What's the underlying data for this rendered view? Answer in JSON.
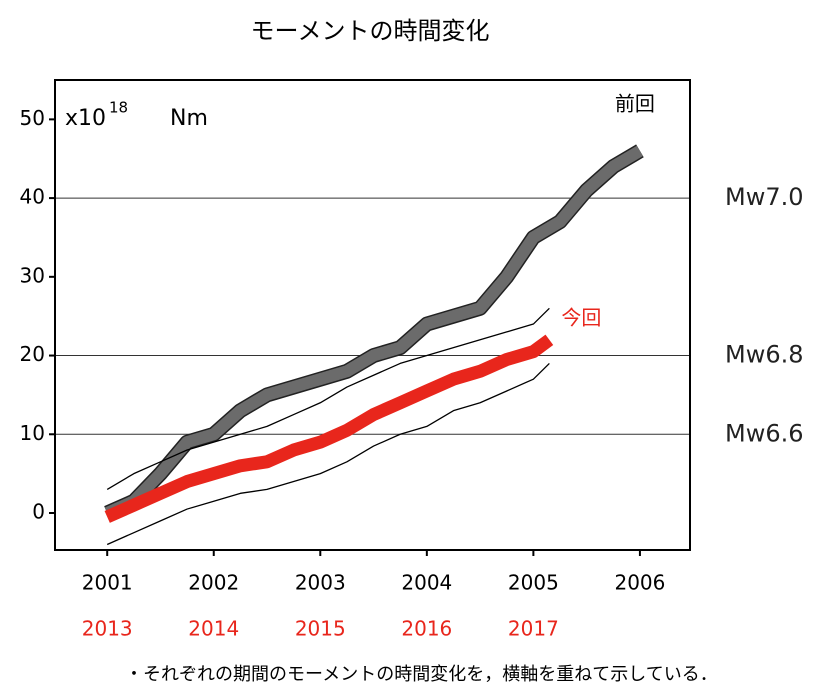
{
  "chart_data": {
    "type": "line",
    "title": "モーメントの時間変化",
    "y_unit": {
      "base": "x10",
      "exponent": "18",
      "unit": "Nm"
    },
    "xlim": [
      2000.51,
      2006.47
    ],
    "xticks": [
      2001,
      2002,
      2003,
      2004,
      2005,
      2006
    ],
    "xticks2": [
      {
        "value": 2001,
        "label": "2013"
      },
      {
        "value": 2002,
        "label": "2014"
      },
      {
        "value": 2003,
        "label": "2015"
      },
      {
        "value": 2004,
        "label": "2016"
      },
      {
        "value": 2005,
        "label": "2017"
      }
    ],
    "ylim": [
      -4.7,
      55
    ],
    "yticks": [
      0,
      10,
      20,
      30,
      40,
      50
    ],
    "reference_lines": [
      {
        "value": 40,
        "label": "Mw7.0"
      },
      {
        "value": 20,
        "label": "Mw6.8"
      },
      {
        "value": 10,
        "label": "Mw6.6"
      }
    ],
    "series": [
      {
        "name": "前回",
        "color": "#6b6b6b",
        "x": [
          2001,
          2001.25,
          2001.5,
          2001.75,
          2002,
          2002.25,
          2002.5,
          2002.75,
          2003,
          2003.25,
          2003.5,
          2003.75,
          2004,
          2004.25,
          2004.5,
          2004.75,
          2005,
          2005.25,
          2005.5,
          2005.75,
          2006
        ],
        "values": [
          0,
          1.5,
          5,
          9,
          10,
          13,
          15,
          16,
          17,
          18,
          20,
          21,
          24,
          25,
          26,
          30,
          35,
          37,
          41,
          44,
          46
        ]
      },
      {
        "name": "今回",
        "color": "#e8261c",
        "x": [
          2001,
          2001.25,
          2001.5,
          2001.75,
          2002,
          2002.25,
          2002.5,
          2002.75,
          2003,
          2003.25,
          2003.5,
          2003.75,
          2004,
          2004.25,
          2004.5,
          2004.75,
          2005,
          2005.15
        ],
        "values": [
          -0.5,
          1,
          2.5,
          4,
          5,
          6,
          6.5,
          8,
          9,
          10.5,
          12.5,
          14,
          15.5,
          17,
          18,
          19.5,
          20.5,
          22
        ],
        "upper": [
          3,
          5,
          6.5,
          8,
          9,
          10,
          11,
          12.5,
          14,
          16,
          17.5,
          19,
          20,
          21,
          22,
          23,
          24,
          26
        ],
        "lower": [
          -4,
          -2.5,
          -1,
          0.5,
          1.5,
          2.5,
          3,
          4,
          5,
          6.5,
          8.5,
          10,
          11,
          13,
          14,
          15.5,
          17,
          19
        ]
      }
    ],
    "footnote": "・それぞれの期間のモーメントの時間変化を，横軸を重ねて示している．"
  }
}
